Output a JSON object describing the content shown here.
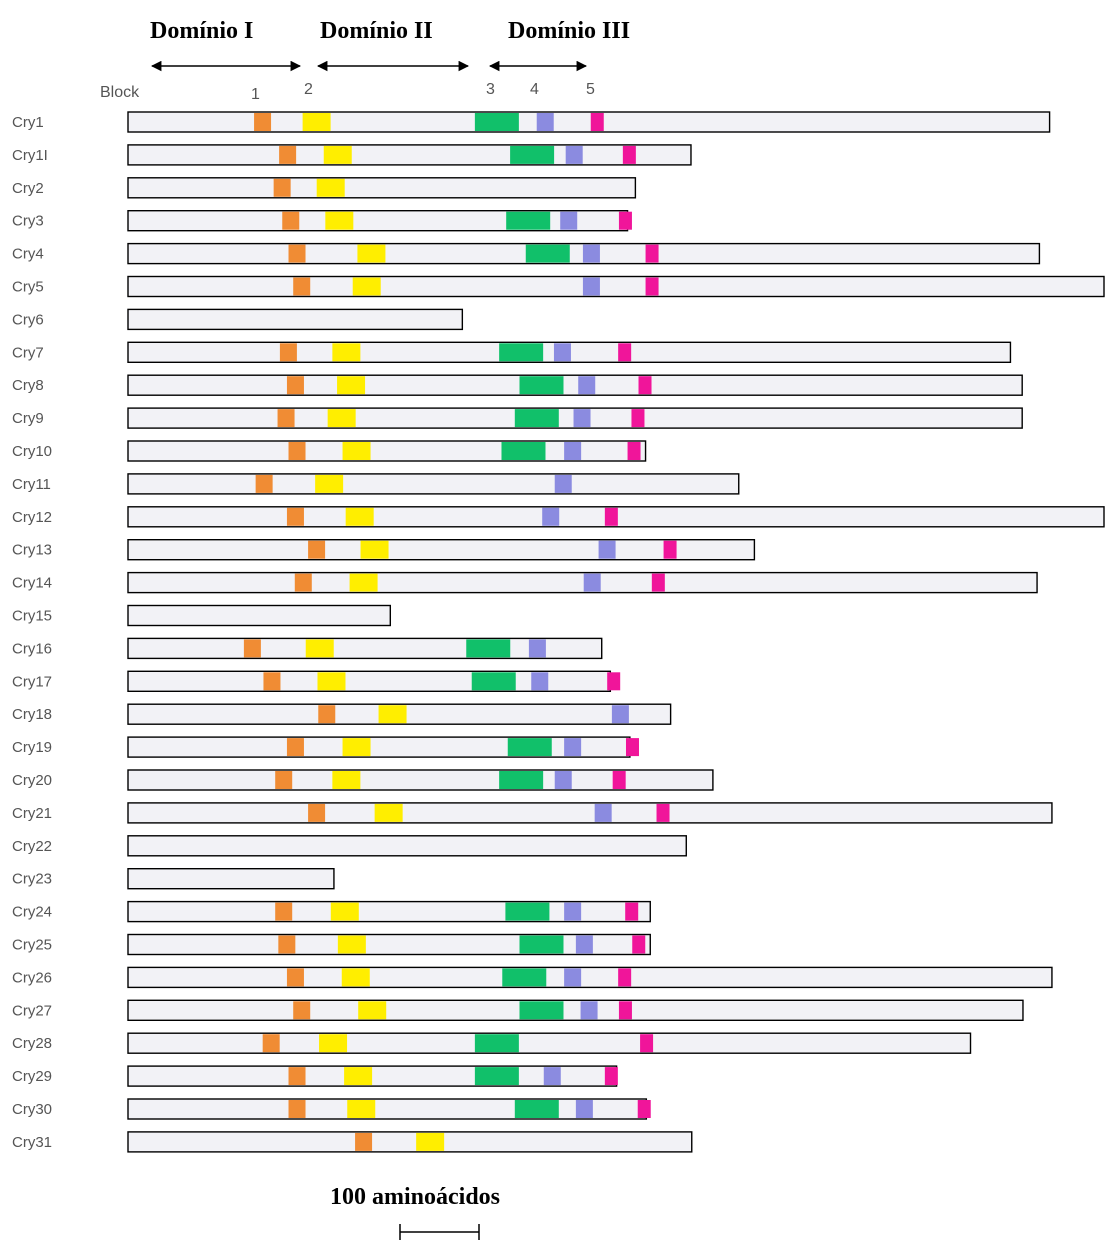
{
  "domains": [
    {
      "label": "Domínio I"
    },
    {
      "label": "Domínio II"
    },
    {
      "label": "Domínio III"
    }
  ],
  "block_header": "Block",
  "block_numbers": [
    "1",
    "2",
    "3",
    "4",
    "5"
  ],
  "colors": {
    "block1": "#f08c34",
    "block2": "#ffee00",
    "block3": "#11c06a",
    "block4": "#8b8be0",
    "block5": "#f0159a",
    "bar_fill": "#f2f2f6",
    "bar_stroke": "#000000"
  },
  "scale_bar": {
    "label": "100 aminoácidos"
  },
  "proteins": [
    {
      "name": "Cry1",
      "length": 1177,
      "blocks": {
        "1": 161,
        "2": 223,
        "3": 443,
        "4": 522,
        "5": 591
      }
    },
    {
      "name": "Cry1I",
      "length": 719,
      "blocks": {
        "1": 193,
        "2": 250,
        "3": 488,
        "4": 559,
        "5": 632
      }
    },
    {
      "name": "Cry2",
      "length": 648,
      "blocks": {
        "1": 186,
        "2": 241
      }
    },
    {
      "name": "Cry3",
      "length": 638,
      "blocks": {
        "1": 197,
        "2": 252,
        "3": 483,
        "4": 552,
        "5": 627
      }
    },
    {
      "name": "Cry4",
      "length": 1164,
      "blocks": {
        "1": 205,
        "2": 293,
        "3": 508,
        "4": 581,
        "5": 661
      }
    },
    {
      "name": "Cry5",
      "length": 1250,
      "blocks": {
        "1": 211,
        "2": 287,
        "4": 581,
        "5": 661
      }
    },
    {
      "name": "Cry6",
      "length": 427
    },
    {
      "name": "Cry7",
      "length": 1127,
      "blocks": {
        "1": 194,
        "2": 261,
        "3": 474,
        "4": 544,
        "5": 626
      }
    },
    {
      "name": "Cry8",
      "length": 1142,
      "blocks": {
        "1": 203,
        "2": 267,
        "3": 500,
        "4": 575,
        "5": 652
      }
    },
    {
      "name": "Cry9",
      "length": 1142,
      "blocks": {
        "1": 191,
        "2": 255,
        "3": 494,
        "4": 569,
        "5": 643
      }
    },
    {
      "name": "Cry10",
      "length": 661,
      "blocks": {
        "1": 205,
        "2": 274,
        "3": 477,
        "4": 557,
        "5": 638
      }
    },
    {
      "name": "Cry11",
      "length": 780,
      "blocks": {
        "1": 163,
        "2": 239,
        "4": 545
      }
    },
    {
      "name": "Cry12",
      "length": 1247,
      "blocks": {
        "1": 203,
        "2": 278,
        "4": 529,
        "5": 609
      }
    },
    {
      "name": "Cry13",
      "length": 800,
      "blocks": {
        "1": 230,
        "2": 297,
        "4": 601,
        "5": 684
      }
    },
    {
      "name": "Cry14",
      "length": 1161,
      "blocks": {
        "1": 213,
        "2": 283,
        "4": 582,
        "5": 669
      }
    },
    {
      "name": "Cry15",
      "length": 335
    },
    {
      "name": "Cry16",
      "length": 605,
      "blocks": {
        "1": 148,
        "2": 227,
        "3": 432,
        "4": 512
      }
    },
    {
      "name": "Cry17",
      "length": 616,
      "blocks": {
        "1": 173,
        "2": 242,
        "3": 439,
        "4": 515,
        "5": 612
      }
    },
    {
      "name": "Cry18",
      "length": 693,
      "blocks": {
        "1": 243,
        "2": 320,
        "4": 618
      }
    },
    {
      "name": "Cry19",
      "length": 641,
      "blocks": {
        "1": 203,
        "2": 274,
        "3": 485,
        "4": 557,
        "5": 636
      }
    },
    {
      "name": "Cry20",
      "length": 747,
      "blocks": {
        "1": 188,
        "2": 261,
        "3": 474,
        "4": 545,
        "5": 619
      }
    },
    {
      "name": "Cry21",
      "length": 1180,
      "blocks": {
        "1": 230,
        "2": 315,
        "4": 596,
        "5": 675
      }
    },
    {
      "name": "Cry22",
      "length": 713
    },
    {
      "name": "Cry23",
      "length": 263
    },
    {
      "name": "Cry24",
      "length": 667,
      "blocks": {
        "1": 188,
        "2": 259,
        "3": 482,
        "4": 557,
        "5": 635
      }
    },
    {
      "name": "Cry25",
      "length": 667,
      "blocks": {
        "1": 192,
        "2": 268,
        "3": 500,
        "4": 572,
        "5": 644
      }
    },
    {
      "name": "Cry26",
      "length": 1180,
      "blocks": {
        "1": 203,
        "2": 273,
        "3": 478,
        "4": 557,
        "5": 626
      }
    },
    {
      "name": "Cry27",
      "length": 1143,
      "blocks": {
        "1": 211,
        "2": 294,
        "3": 500,
        "4": 578,
        "5": 627
      }
    },
    {
      "name": "Cry28",
      "length": 1076,
      "blocks": {
        "1": 172,
        "2": 244,
        "3": 443,
        "5": 654
      }
    },
    {
      "name": "Cry29",
      "length": 624,
      "blocks": {
        "1": 205,
        "2": 276,
        "3": 443,
        "4": 531,
        "5": 609
      }
    },
    {
      "name": "Cry30",
      "length": 662,
      "blocks": {
        "1": 205,
        "2": 280,
        "3": 494,
        "4": 572,
        "5": 651
      }
    },
    {
      "name": "Cry31",
      "length": 720,
      "blocks": {
        "1": 290,
        "2": 368
      }
    }
  ]
}
